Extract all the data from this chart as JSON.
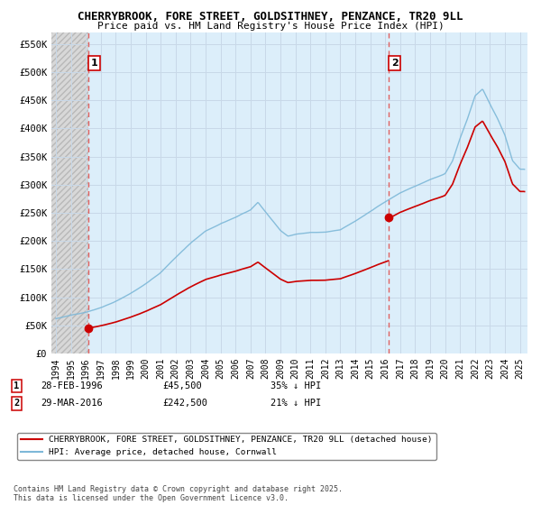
{
  "title": "CHERRYBROOK, FORE STREET, GOLDSITHNEY, PENZANCE, TR20 9LL",
  "subtitle": "Price paid vs. HM Land Registry's House Price Index (HPI)",
  "sale1_date": 1996.16,
  "sale1_price": 45500,
  "sale1_label": "1",
  "sale2_date": 2016.24,
  "sale2_price": 242500,
  "sale2_label": "2",
  "ylim": [
    0,
    570000
  ],
  "xlim": [
    1993.7,
    2025.5
  ],
  "yticks": [
    0,
    50000,
    100000,
    150000,
    200000,
    250000,
    300000,
    350000,
    400000,
    450000,
    500000,
    550000
  ],
  "ytick_labels": [
    "£0",
    "£50K",
    "£100K",
    "£150K",
    "£200K",
    "£250K",
    "£300K",
    "£350K",
    "£400K",
    "£450K",
    "£500K",
    "£550K"
  ],
  "hpi_color": "#7db8d8",
  "property_color": "#cc0000",
  "vline_color": "#e06060",
  "grid_color": "#c8d8e8",
  "bg_plot": "#dceefa",
  "legend_property": "CHERRYBROOK, FORE STREET, GOLDSITHNEY, PENZANCE, TR20 9LL (detached house)",
  "legend_hpi": "HPI: Average price, detached house, Cornwall",
  "note1_label": "1",
  "note1_date": "28-FEB-1996",
  "note1_price": "£45,500",
  "note1_hpi": "35% ↓ HPI",
  "note2_label": "2",
  "note2_date": "29-MAR-2016",
  "note2_price": "£242,500",
  "note2_hpi": "21% ↓ HPI",
  "copyright": "Contains HM Land Registry data © Crown copyright and database right 2025.\nThis data is licensed under the Open Government Licence v3.0.",
  "hpi_knots_x": [
    1994,
    1995,
    1996,
    1997,
    1998,
    1999,
    2000,
    2001,
    2002,
    2003,
    2004,
    2005,
    2006,
    2007,
    2007.5,
    2008,
    2009,
    2009.5,
    2010,
    2011,
    2012,
    2013,
    2014,
    2015,
    2016,
    2017,
    2018,
    2019,
    2020,
    2020.5,
    2021,
    2021.5,
    2022,
    2022.5,
    2023,
    2023.5,
    2024,
    2024.5,
    2025
  ],
  "hpi_knots_y": [
    62000,
    68000,
    74000,
    82000,
    93000,
    108000,
    125000,
    145000,
    172000,
    198000,
    220000,
    233000,
    245000,
    258000,
    272000,
    255000,
    222000,
    212000,
    215000,
    218000,
    218000,
    222000,
    238000,
    255000,
    272000,
    288000,
    300000,
    312000,
    322000,
    345000,
    385000,
    420000,
    460000,
    472000,
    445000,
    420000,
    390000,
    345000,
    330000
  ]
}
